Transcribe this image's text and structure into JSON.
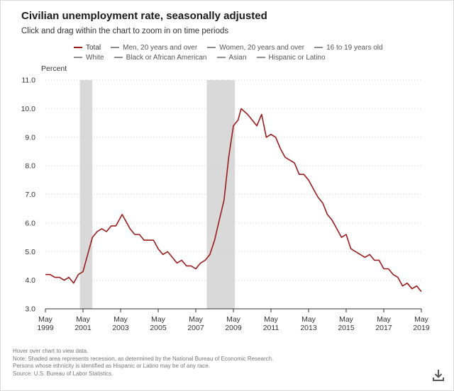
{
  "header": {
    "title": "Civilian unemployment rate, seasonally adjusted",
    "subtitle": "Click and drag within the chart to zoom in on time periods"
  },
  "legend": [
    {
      "label": "Total",
      "active": true
    },
    {
      "label": "Men, 20 years and over",
      "active": false
    },
    {
      "label": "Women, 20 years and over",
      "active": false
    },
    {
      "label": "16 to 19 years old",
      "active": false
    },
    {
      "label": "White",
      "active": false
    },
    {
      "label": "Black or African American",
      "active": false
    },
    {
      "label": "Asian",
      "active": false
    },
    {
      "label": "Hispanic or Latino",
      "active": false
    }
  ],
  "notes": {
    "hover": "Hover over chart to view data.",
    "note1": "Note: Shaded area represents recession, as determined by the National Bureau of Economic Research.",
    "note2": "Persons whose ethnicity is identified as Hispanic or Latino may be of any race.",
    "source": "Source: U.S. Bureau of Labor Statistics."
  },
  "icons": {
    "download": "download-icon"
  },
  "colors": {
    "line": "#9b1b1b",
    "recession": "#d9d9d9",
    "grid": "#cfcfcf"
  },
  "chart_data": {
    "type": "line",
    "ylabel": "Percent",
    "ylim": [
      3.0,
      11.0
    ],
    "yticks": [
      "3.0",
      "4.0",
      "5.0",
      "6.0",
      "7.0",
      "8.0",
      "9.0",
      "10.0",
      "11.0"
    ],
    "xlim": [
      "1999-05",
      "2019-05"
    ],
    "xticks": [
      {
        "date": "1999-05",
        "month": "May",
        "year": "1999"
      },
      {
        "date": "2001-05",
        "month": "May",
        "year": "2001"
      },
      {
        "date": "2003-05",
        "month": "May",
        "year": "2003"
      },
      {
        "date": "2005-05",
        "month": "May",
        "year": "2005"
      },
      {
        "date": "2007-05",
        "month": "May",
        "year": "2007"
      },
      {
        "date": "2009-05",
        "month": "May",
        "year": "2009"
      },
      {
        "date": "2011-05",
        "month": "May",
        "year": "2011"
      },
      {
        "date": "2013-05",
        "month": "May",
        "year": "2013"
      },
      {
        "date": "2015-05",
        "month": "May",
        "year": "2015"
      },
      {
        "date": "2017-05",
        "month": "May",
        "year": "2017"
      },
      {
        "date": "2019-05",
        "month": "May",
        "year": "2019"
      }
    ],
    "grid": true,
    "recessions": [
      {
        "start": "2001-03",
        "end": "2001-11"
      },
      {
        "start": "2007-12",
        "end": "2009-06"
      }
    ],
    "series": [
      {
        "name": "Total",
        "x": [
          "1999-05",
          "1999-08",
          "1999-11",
          "2000-02",
          "2000-05",
          "2000-08",
          "2000-11",
          "2001-02",
          "2001-05",
          "2001-08",
          "2001-11",
          "2002-02",
          "2002-05",
          "2002-08",
          "2002-11",
          "2003-02",
          "2003-06",
          "2003-08",
          "2003-11",
          "2004-02",
          "2004-05",
          "2004-08",
          "2004-11",
          "2005-02",
          "2005-05",
          "2005-08",
          "2005-11",
          "2006-02",
          "2006-05",
          "2006-08",
          "2006-11",
          "2007-02",
          "2007-05",
          "2007-08",
          "2007-11",
          "2008-02",
          "2008-05",
          "2008-08",
          "2008-11",
          "2009-02",
          "2009-05",
          "2009-08",
          "2009-10",
          "2010-02",
          "2010-05",
          "2010-08",
          "2010-11",
          "2011-02",
          "2011-05",
          "2011-08",
          "2011-11",
          "2012-02",
          "2012-05",
          "2012-08",
          "2012-11",
          "2013-02",
          "2013-05",
          "2013-08",
          "2013-11",
          "2014-02",
          "2014-05",
          "2014-08",
          "2014-11",
          "2015-02",
          "2015-05",
          "2015-08",
          "2015-11",
          "2016-02",
          "2016-05",
          "2016-08",
          "2016-11",
          "2017-02",
          "2017-05",
          "2017-08",
          "2017-11",
          "2018-02",
          "2018-05",
          "2018-08",
          "2018-11",
          "2019-02",
          "2019-05"
        ],
        "values": [
          4.2,
          4.2,
          4.1,
          4.1,
          4.0,
          4.1,
          3.9,
          4.2,
          4.3,
          4.9,
          5.5,
          5.7,
          5.8,
          5.7,
          5.9,
          5.9,
          6.3,
          6.1,
          5.8,
          5.6,
          5.6,
          5.4,
          5.4,
          5.4,
          5.1,
          4.9,
          5.0,
          4.8,
          4.6,
          4.7,
          4.5,
          4.5,
          4.4,
          4.6,
          4.7,
          4.9,
          5.4,
          6.1,
          6.8,
          8.3,
          9.4,
          9.6,
          10.0,
          9.8,
          9.6,
          9.4,
          9.8,
          9.0,
          9.1,
          9.0,
          8.6,
          8.3,
          8.2,
          8.1,
          7.7,
          7.7,
          7.5,
          7.2,
          6.9,
          6.7,
          6.3,
          6.1,
          5.8,
          5.5,
          5.6,
          5.1,
          5.0,
          4.9,
          4.8,
          4.9,
          4.7,
          4.7,
          4.4,
          4.4,
          4.2,
          4.1,
          3.8,
          3.9,
          3.7,
          3.8,
          3.6
        ]
      }
    ]
  }
}
